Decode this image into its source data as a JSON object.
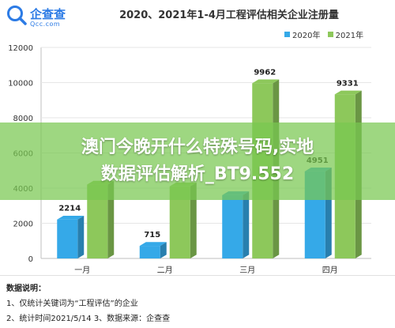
{
  "brand": {
    "name": "企查查",
    "sub": "Qcc.com",
    "accent": "#2c7be5"
  },
  "chart_data": {
    "type": "bar",
    "title": "2020、2021年1-4月工程评估相关企业注册量",
    "categories": [
      "一月",
      "二月",
      "三月",
      "四月"
    ],
    "series": [
      {
        "name": "2020年",
        "color": "#35a9e8",
        "values": [
          2214,
          715,
          3600,
          4951
        ]
      },
      {
        "name": "2021年",
        "color": "#8dc85b",
        "values": [
          4200,
          4100,
          9962,
          9331
        ]
      }
    ],
    "data_labels": [
      [
        "2214",
        ""
      ],
      [
        "715",
        ""
      ],
      [
        "",
        "9962"
      ],
      [
        "4951",
        "9331"
      ]
    ],
    "yticks": [
      "0",
      "2000",
      "4000",
      "6000",
      "8000",
      "10000",
      "12000"
    ],
    "ylim": [
      0,
      12000
    ],
    "legend_position": "top-right",
    "grid": true
  },
  "banner": {
    "line1": "澳门今晚开什么特殊号码,实地",
    "line2": "数据评估解析_BT9.552"
  },
  "notes": {
    "heading": "数据说明：",
    "line1": "1、仅统计关键词为“工程评估”的企业",
    "line2": "2、统计时间2021/5/14   3、数据来源：企查查"
  }
}
